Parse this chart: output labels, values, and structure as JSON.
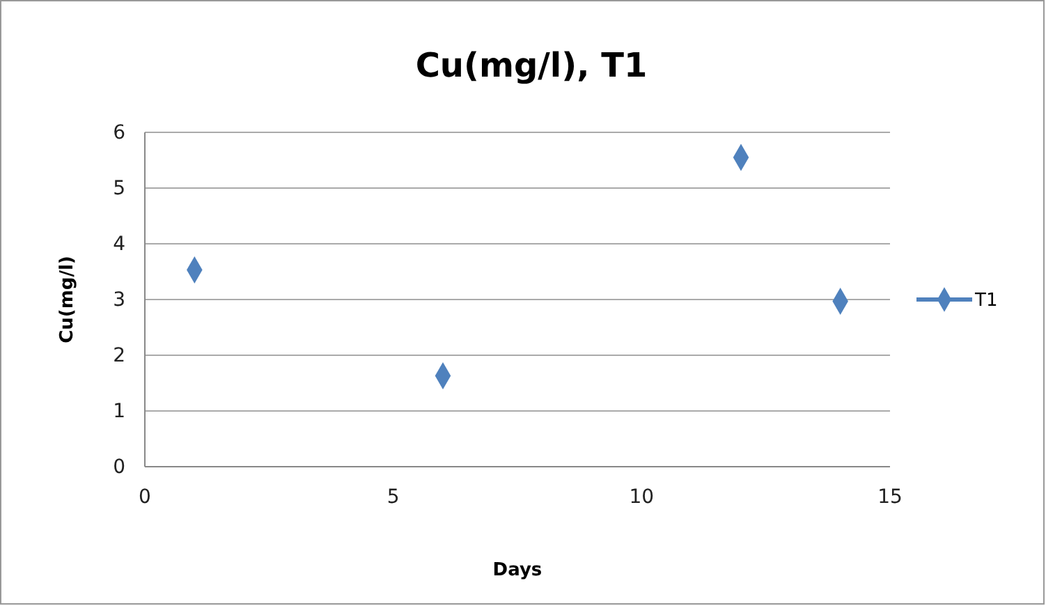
{
  "chart_data": {
    "type": "scatter",
    "title": "Cu(mg/l), T1",
    "xlabel": "Days",
    "ylabel": "Cu(mg/l)",
    "x": [
      1,
      6,
      12,
      14
    ],
    "series": [
      {
        "name": "T1",
        "color": "#4f81bd",
        "values": [
          3.53,
          1.63,
          5.55,
          2.97
        ]
      }
    ],
    "xlim": [
      0,
      15
    ],
    "xticks": [
      0,
      5,
      10,
      15
    ],
    "ylim": [
      0,
      6
    ],
    "yticks": [
      0,
      1,
      2,
      3,
      4,
      5,
      6
    ],
    "grid": "y",
    "legend": "right",
    "marker": "diamond"
  }
}
